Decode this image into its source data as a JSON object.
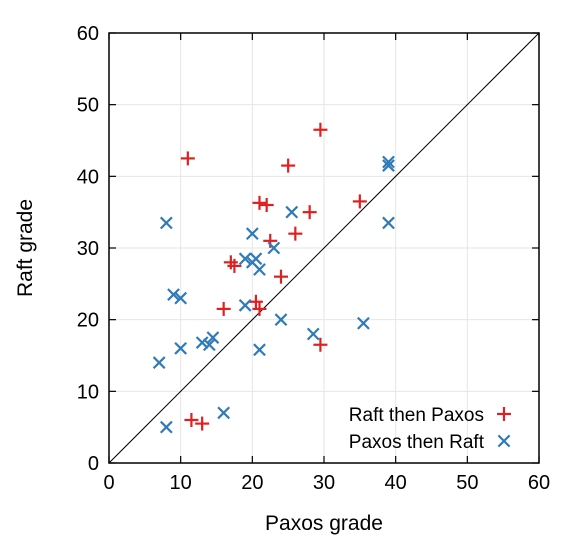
{
  "chart_data": {
    "type": "scatter",
    "title": "",
    "xlabel": "Paxos grade",
    "ylabel": "Raft grade",
    "xlim": [
      0,
      60
    ],
    "ylim": [
      0,
      60
    ],
    "xticks": [
      "0",
      "10",
      "20",
      "30",
      "40",
      "50",
      "60"
    ],
    "yticks": [
      "0",
      "10",
      "20",
      "30",
      "40",
      "50",
      "60"
    ],
    "grid": true,
    "diagonal_reference_line": true,
    "legend_position": "bottom-right",
    "series": [
      {
        "name": "Raft then Paxos",
        "marker": "plus",
        "color": "#e02020",
        "points": [
          [
            11,
            42.5
          ],
          [
            29.5,
            46.5
          ],
          [
            25,
            41.5
          ],
          [
            35,
            36.5
          ],
          [
            21,
            36.3
          ],
          [
            22,
            36
          ],
          [
            28,
            35
          ],
          [
            26,
            32
          ],
          [
            22.5,
            31
          ],
          [
            17,
            28
          ],
          [
            17.5,
            27.5
          ],
          [
            24,
            26
          ],
          [
            16,
            21.5
          ],
          [
            20.5,
            22.5
          ],
          [
            21,
            21.5
          ],
          [
            29.5,
            16.5
          ],
          [
            11.5,
            6
          ],
          [
            13,
            5.5
          ]
        ]
      },
      {
        "name": "Paxos then Raft",
        "marker": "x",
        "color": "#2f7ab8",
        "points": [
          [
            39,
            42
          ],
          [
            39,
            41.5
          ],
          [
            25.5,
            35
          ],
          [
            8,
            33.5
          ],
          [
            39,
            33.5
          ],
          [
            20,
            32
          ],
          [
            23,
            30
          ],
          [
            19,
            28.5
          ],
          [
            20.5,
            28.5
          ],
          [
            20,
            28
          ],
          [
            21,
            27
          ],
          [
            9,
            23.5
          ],
          [
            10,
            23
          ],
          [
            19,
            22
          ],
          [
            24,
            20
          ],
          [
            35.5,
            19.5
          ],
          [
            28.5,
            18
          ],
          [
            14.5,
            17.5
          ],
          [
            13,
            16.8
          ],
          [
            14,
            16.5
          ],
          [
            10,
            16
          ],
          [
            21,
            15.8
          ],
          [
            7,
            14
          ],
          [
            16,
            7
          ],
          [
            8,
            5
          ]
        ]
      }
    ]
  }
}
